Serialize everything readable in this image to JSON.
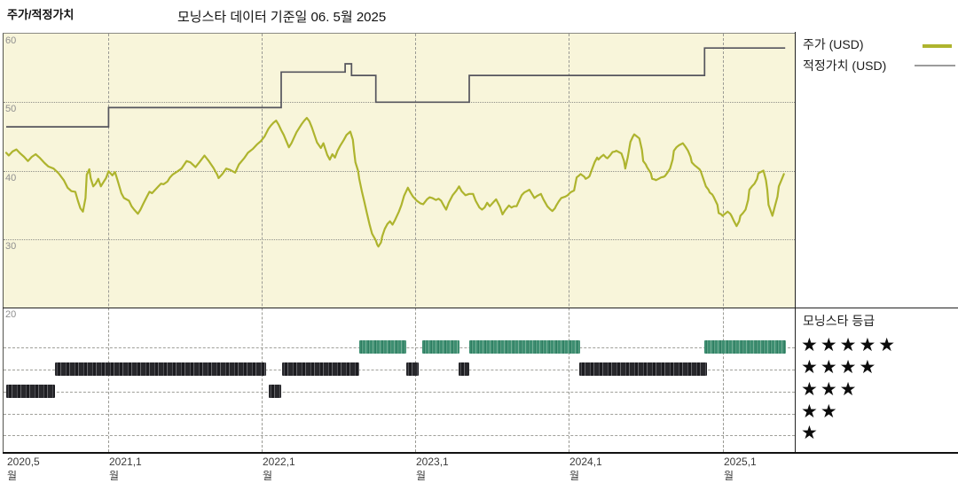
{
  "header": {
    "title": "주가/적정가치",
    "subtitle": "모닝스타 데이터 기준일 06. 5월 2025"
  },
  "legend": {
    "price_label": "주가 (USD)",
    "fair_value_label": "적정가치 (USD)"
  },
  "rating_legend": {
    "title": "모닝스타 등급",
    "star_char": "★",
    "rows": [
      5,
      4,
      3,
      2,
      1
    ]
  },
  "colors": {
    "price_line": "#aeb42e",
    "fair_value_line": "#55555d",
    "fair_value_swatch": "#9b9b9b",
    "rating_5star_bar": "#3e8e71",
    "rating_other_bar": "#28282c",
    "plot_background": "#f8f5da"
  },
  "chart_data": {
    "type": "line",
    "title": "모닝스타 데이터 기준일 06. 5월 2025",
    "x_unit": "months since 2020-05",
    "x_range": [
      0,
      61
    ],
    "ylim": [
      20,
      60
    ],
    "y_ticks": [
      60,
      50,
      40,
      30,
      20
    ],
    "x_ticks": [
      {
        "label": "2020,5월",
        "m": 0
      },
      {
        "label": "2021,1월",
        "m": 8
      },
      {
        "label": "2022,1월",
        "m": 20
      },
      {
        "label": "2023,1월",
        "m": 32
      },
      {
        "label": "2024,1월",
        "m": 44
      },
      {
        "label": "2025,1월",
        "m": 56
      }
    ],
    "grid": {
      "h_values": [
        50,
        40,
        30
      ],
      "v_months": [
        8,
        20,
        32,
        44,
        56
      ]
    },
    "legend_position": "right",
    "series": [
      {
        "name": "주가 (USD)",
        "type": "line",
        "points": [
          [
            0,
            42.6
          ],
          [
            0.2,
            42.2
          ],
          [
            0.5,
            42.8
          ],
          [
            0.8,
            43.1
          ],
          [
            1.1,
            42.5
          ],
          [
            1.4,
            42.0
          ],
          [
            1.7,
            41.4
          ],
          [
            2.0,
            42.0
          ],
          [
            2.3,
            42.4
          ],
          [
            2.6,
            41.9
          ],
          [
            3.0,
            41.1
          ],
          [
            3.3,
            40.6
          ],
          [
            3.7,
            40.3
          ],
          [
            4.1,
            39.6
          ],
          [
            4.5,
            38.6
          ],
          [
            4.8,
            37.5
          ],
          [
            5.1,
            37.0
          ],
          [
            5.4,
            36.9
          ],
          [
            5.6,
            35.6
          ],
          [
            5.8,
            34.5
          ],
          [
            6.0,
            34.0
          ],
          [
            6.2,
            36.0
          ],
          [
            6.3,
            39.4
          ],
          [
            6.5,
            40.2
          ],
          [
            6.6,
            38.9
          ],
          [
            6.8,
            37.7
          ],
          [
            7.0,
            38.1
          ],
          [
            7.2,
            38.8
          ],
          [
            7.4,
            37.7
          ],
          [
            7.6,
            38.3
          ],
          [
            7.8,
            38.9
          ],
          [
            8.0,
            39.9
          ],
          [
            8.3,
            39.3
          ],
          [
            8.5,
            39.8
          ],
          [
            8.7,
            38.6
          ],
          [
            9.0,
            36.7
          ],
          [
            9.2,
            36.0
          ],
          [
            9.6,
            35.6
          ],
          [
            9.8,
            34.8
          ],
          [
            10.0,
            34.3
          ],
          [
            10.3,
            33.7
          ],
          [
            10.5,
            34.3
          ],
          [
            10.7,
            35.1
          ],
          [
            11.0,
            36.2
          ],
          [
            11.2,
            36.9
          ],
          [
            11.4,
            36.7
          ],
          [
            11.6,
            37.1
          ],
          [
            11.9,
            37.7
          ],
          [
            12.1,
            38.1
          ],
          [
            12.3,
            38.0
          ],
          [
            12.6,
            38.4
          ],
          [
            12.8,
            39.0
          ],
          [
            13.0,
            39.4
          ],
          [
            13.4,
            39.9
          ],
          [
            13.7,
            40.3
          ],
          [
            14.1,
            41.4
          ],
          [
            14.4,
            41.2
          ],
          [
            14.8,
            40.5
          ],
          [
            15.1,
            41.2
          ],
          [
            15.5,
            42.2
          ],
          [
            15.8,
            41.5
          ],
          [
            16.2,
            40.4
          ],
          [
            16.5,
            39.4
          ],
          [
            16.6,
            38.9
          ],
          [
            16.9,
            39.5
          ],
          [
            17.2,
            40.3
          ],
          [
            17.5,
            40.1
          ],
          [
            17.9,
            39.7
          ],
          [
            18.2,
            40.9
          ],
          [
            18.6,
            41.8
          ],
          [
            18.9,
            42.6
          ],
          [
            19.3,
            43.2
          ],
          [
            19.6,
            43.8
          ],
          [
            19.9,
            44.3
          ],
          [
            20.2,
            45.0
          ],
          [
            20.5,
            46.1
          ],
          [
            20.7,
            46.6
          ],
          [
            20.9,
            47.0
          ],
          [
            21.1,
            47.3
          ],
          [
            21.3,
            46.7
          ],
          [
            21.5,
            45.9
          ],
          [
            21.7,
            45.2
          ],
          [
            21.9,
            44.3
          ],
          [
            22.1,
            43.4
          ],
          [
            22.3,
            44.0
          ],
          [
            22.5,
            44.8
          ],
          [
            22.7,
            45.6
          ],
          [
            22.9,
            46.2
          ],
          [
            23.1,
            46.8
          ],
          [
            23.3,
            47.3
          ],
          [
            23.5,
            47.7
          ],
          [
            23.7,
            47.2
          ],
          [
            23.9,
            46.3
          ],
          [
            24.1,
            45.2
          ],
          [
            24.3,
            44.1
          ],
          [
            24.6,
            43.3
          ],
          [
            24.8,
            44.0
          ],
          [
            25.1,
            42.3
          ],
          [
            25.3,
            41.6
          ],
          [
            25.5,
            42.4
          ],
          [
            25.7,
            41.9
          ],
          [
            25.9,
            42.9
          ],
          [
            26.1,
            43.6
          ],
          [
            26.4,
            44.5
          ],
          [
            26.6,
            45.2
          ],
          [
            26.9,
            45.7
          ],
          [
            27.1,
            44.5
          ],
          [
            27.2,
            42.8
          ],
          [
            27.3,
            41.2
          ],
          [
            27.5,
            40.0
          ],
          [
            27.6,
            38.8
          ],
          [
            27.8,
            37.0
          ],
          [
            28.0,
            35.4
          ],
          [
            28.2,
            33.8
          ],
          [
            28.4,
            32.2
          ],
          [
            28.6,
            30.8
          ],
          [
            28.9,
            29.8
          ],
          [
            29.0,
            29.2
          ],
          [
            29.1,
            28.9
          ],
          [
            29.3,
            29.5
          ],
          [
            29.4,
            30.4
          ],
          [
            29.6,
            31.5
          ],
          [
            29.8,
            32.2
          ],
          [
            30.0,
            32.6
          ],
          [
            30.2,
            32.1
          ],
          [
            30.4,
            32.8
          ],
          [
            30.7,
            34.0
          ],
          [
            30.9,
            35.0
          ],
          [
            31.1,
            36.3
          ],
          [
            31.4,
            37.5
          ],
          [
            31.6,
            36.8
          ],
          [
            31.8,
            36.2
          ],
          [
            32.1,
            35.6
          ],
          [
            32.4,
            35.2
          ],
          [
            32.6,
            35.1
          ],
          [
            32.9,
            35.8
          ],
          [
            33.1,
            36.1
          ],
          [
            33.3,
            36.0
          ],
          [
            33.6,
            35.7
          ],
          [
            33.8,
            35.9
          ],
          [
            34.0,
            35.6
          ],
          [
            34.2,
            34.9
          ],
          [
            34.4,
            34.3
          ],
          [
            34.6,
            35.3
          ],
          [
            34.9,
            36.4
          ],
          [
            35.2,
            37.1
          ],
          [
            35.4,
            37.7
          ],
          [
            35.6,
            37.0
          ],
          [
            35.9,
            36.4
          ],
          [
            36.2,
            36.6
          ],
          [
            36.5,
            36.6
          ],
          [
            36.7,
            35.6
          ],
          [
            37.0,
            34.6
          ],
          [
            37.2,
            34.3
          ],
          [
            37.4,
            34.6
          ],
          [
            37.6,
            35.3
          ],
          [
            37.8,
            34.8
          ],
          [
            38.1,
            35.4
          ],
          [
            38.3,
            35.8
          ],
          [
            38.6,
            34.7
          ],
          [
            38.8,
            33.6
          ],
          [
            39.0,
            34.2
          ],
          [
            39.3,
            34.9
          ],
          [
            39.5,
            34.6
          ],
          [
            39.7,
            34.8
          ],
          [
            39.9,
            34.8
          ],
          [
            40.1,
            35.6
          ],
          [
            40.3,
            36.4
          ],
          [
            40.5,
            36.8
          ],
          [
            40.7,
            37.0
          ],
          [
            40.9,
            37.2
          ],
          [
            41.1,
            36.6
          ],
          [
            41.3,
            36.0
          ],
          [
            41.5,
            36.3
          ],
          [
            41.8,
            36.6
          ],
          [
            42.0,
            35.8
          ],
          [
            42.3,
            34.8
          ],
          [
            42.5,
            34.4
          ],
          [
            42.7,
            34.1
          ],
          [
            42.9,
            34.5
          ],
          [
            43.0,
            34.9
          ],
          [
            43.2,
            35.5
          ],
          [
            43.4,
            36.0
          ],
          [
            43.7,
            36.2
          ],
          [
            43.9,
            36.4
          ],
          [
            44.1,
            36.8
          ],
          [
            44.4,
            37.1
          ],
          [
            44.6,
            39.0
          ],
          [
            44.8,
            39.3
          ],
          [
            44.9,
            39.5
          ],
          [
            45.2,
            39.1
          ],
          [
            45.3,
            38.8
          ],
          [
            45.5,
            39.0
          ],
          [
            45.6,
            39.2
          ],
          [
            45.8,
            40.2
          ],
          [
            46.0,
            41.2
          ],
          [
            46.2,
            41.9
          ],
          [
            46.3,
            41.6
          ],
          [
            46.5,
            42.0
          ],
          [
            46.7,
            42.3
          ],
          [
            46.9,
            41.9
          ],
          [
            47.0,
            41.8
          ],
          [
            47.2,
            42.2
          ],
          [
            47.4,
            42.7
          ],
          [
            47.6,
            42.8
          ],
          [
            47.7,
            42.9
          ],
          [
            47.9,
            42.7
          ],
          [
            48.1,
            42.5
          ],
          [
            48.3,
            41.4
          ],
          [
            48.4,
            40.3
          ],
          [
            48.6,
            42.0
          ],
          [
            48.8,
            44.2
          ],
          [
            49.0,
            45.0
          ],
          [
            49.1,
            45.3
          ],
          [
            49.3,
            45.0
          ],
          [
            49.5,
            44.7
          ],
          [
            49.7,
            43.0
          ],
          [
            49.8,
            41.4
          ],
          [
            50.0,
            40.9
          ],
          [
            50.1,
            40.5
          ],
          [
            50.4,
            39.6
          ],
          [
            50.5,
            38.8
          ],
          [
            50.7,
            38.7
          ],
          [
            50.8,
            38.6
          ],
          [
            51.0,
            38.8
          ],
          [
            51.2,
            39.0
          ],
          [
            51.4,
            39.1
          ],
          [
            51.5,
            39.2
          ],
          [
            51.7,
            39.7
          ],
          [
            51.9,
            40.3
          ],
          [
            52.1,
            41.6
          ],
          [
            52.2,
            42.9
          ],
          [
            52.4,
            43.4
          ],
          [
            52.6,
            43.7
          ],
          [
            52.8,
            43.9
          ],
          [
            52.9,
            44.0
          ],
          [
            53.1,
            43.5
          ],
          [
            53.3,
            42.9
          ],
          [
            53.5,
            42.0
          ],
          [
            53.6,
            41.2
          ],
          [
            53.8,
            40.8
          ],
          [
            54.0,
            40.5
          ],
          [
            54.2,
            40.2
          ],
          [
            54.3,
            39.9
          ],
          [
            54.5,
            38.8
          ],
          [
            54.7,
            37.7
          ],
          [
            54.9,
            37.2
          ],
          [
            55.0,
            36.8
          ],
          [
            55.2,
            36.5
          ],
          [
            55.3,
            36.2
          ],
          [
            55.6,
            35.0
          ],
          [
            55.7,
            33.8
          ],
          [
            55.9,
            33.6
          ],
          [
            56.0,
            33.4
          ],
          [
            56.2,
            33.7
          ],
          [
            56.4,
            34.0
          ],
          [
            56.6,
            33.7
          ],
          [
            56.7,
            33.4
          ],
          [
            56.9,
            32.6
          ],
          [
            57.1,
            31.9
          ],
          [
            57.3,
            32.6
          ],
          [
            57.4,
            33.4
          ],
          [
            57.6,
            33.8
          ],
          [
            57.8,
            34.3
          ],
          [
            58.0,
            35.7
          ],
          [
            58.1,
            37.2
          ],
          [
            58.3,
            37.7
          ],
          [
            58.5,
            38.1
          ],
          [
            58.7,
            38.8
          ],
          [
            58.8,
            39.6
          ],
          [
            59.0,
            39.8
          ],
          [
            59.2,
            40.0
          ],
          [
            59.4,
            38.6
          ],
          [
            59.5,
            37.2
          ],
          [
            59.6,
            35.0
          ],
          [
            59.9,
            33.4
          ],
          [
            60.1,
            34.8
          ],
          [
            60.3,
            36.2
          ],
          [
            60.4,
            37.7
          ],
          [
            60.6,
            38.6
          ],
          [
            60.8,
            39.5
          ]
        ]
      },
      {
        "name": "적정가치 (USD)",
        "type": "step",
        "end_m": 60.9,
        "steps": [
          {
            "m": 0,
            "v": 46.4
          },
          {
            "m": 8.0,
            "v": 49.2
          },
          {
            "m": 21.5,
            "v": 54.4
          },
          {
            "m": 26.5,
            "v": 55.6
          },
          {
            "m": 27.0,
            "v": 53.9
          },
          {
            "m": 28.9,
            "v": 50.0
          },
          {
            "m": 36.2,
            "v": 53.9
          },
          {
            "m": 54.6,
            "v": 57.9
          }
        ]
      }
    ],
    "ratings": [
      {
        "stars": 3,
        "start_m": 0.0,
        "end_m": 3.8
      },
      {
        "stars": 4,
        "start_m": 3.8,
        "end_m": 20.3
      },
      {
        "stars": 3,
        "start_m": 20.5,
        "end_m": 21.5
      },
      {
        "stars": 4,
        "start_m": 21.6,
        "end_m": 27.6
      },
      {
        "stars": 5,
        "start_m": 27.6,
        "end_m": 31.3
      },
      {
        "stars": 4,
        "start_m": 31.3,
        "end_m": 32.3
      },
      {
        "stars": 5,
        "start_m": 32.5,
        "end_m": 35.4
      },
      {
        "stars": 4,
        "start_m": 35.4,
        "end_m": 36.2
      },
      {
        "stars": 5,
        "start_m": 36.2,
        "end_m": 44.9
      },
      {
        "stars": 4,
        "start_m": 44.8,
        "end_m": 54.8
      },
      {
        "stars": 5,
        "start_m": 54.6,
        "end_m": 61.0
      }
    ]
  }
}
